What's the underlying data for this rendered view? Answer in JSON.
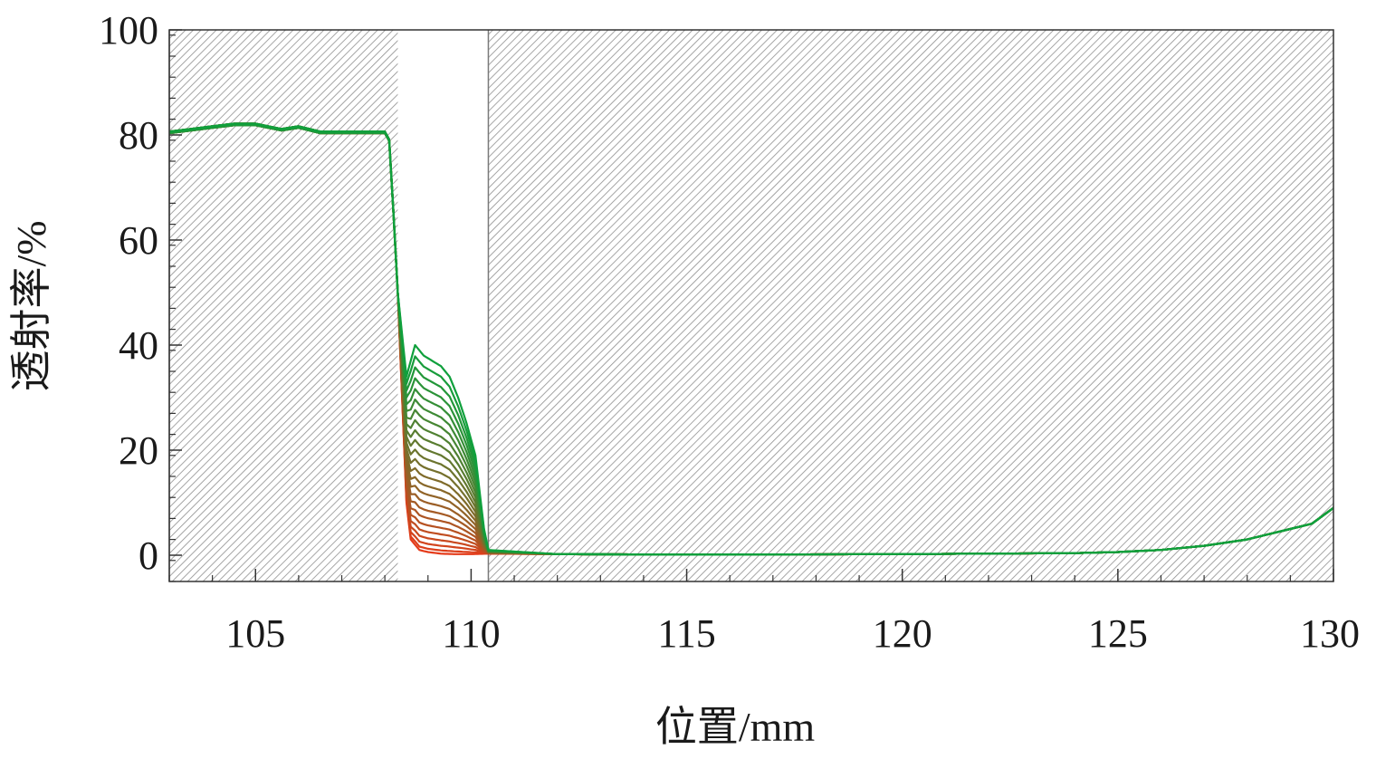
{
  "chart_data": {
    "type": "line",
    "xlabel": "位置/mm",
    "ylabel": "透射率/%",
    "xlim": [
      103,
      130
    ],
    "ylim": [
      -5,
      100
    ],
    "x_ticks": [
      105,
      110,
      115,
      120,
      125,
      130
    ],
    "y_ticks": [
      0,
      20,
      40,
      60,
      80,
      100
    ],
    "x_tick_labels": [
      "105",
      "110",
      "115",
      "120",
      "125",
      "130"
    ],
    "y_tick_labels": [
      "0",
      "20",
      "40",
      "60",
      "80",
      "100"
    ],
    "grid": false,
    "shaded_regions": [
      {
        "x": [
          103,
          108.3
        ],
        "pattern": "hatched"
      },
      {
        "x": [
          110.4,
          130
        ],
        "pattern": "hatched"
      }
    ],
    "colors": {
      "first_series": "#e53b1a",
      "last_series": "#0fa03c",
      "hatch": "#8a8a8a",
      "axis": "#333333"
    },
    "series_count": 24,
    "common_profile": {
      "x": [
        103,
        103.5,
        104,
        104.5,
        105,
        105.3,
        105.6,
        106,
        106.5,
        107,
        107.5,
        108,
        108.1,
        108.2,
        108.3
      ],
      "y": [
        80.5,
        81,
        81.5,
        82,
        82,
        81.5,
        81,
        81.5,
        80.5,
        80.5,
        80.5,
        80.5,
        79,
        65,
        50
      ]
    },
    "window_peak_profile": {
      "x": [
        108.3,
        108.5,
        108.7,
        108.9,
        109.1,
        109.3,
        109.5,
        109.7,
        109.9,
        110.1,
        110.3,
        110.4
      ],
      "y": [
        50,
        34,
        40,
        38,
        37,
        36,
        34,
        30,
        25,
        19,
        5,
        1
      ]
    },
    "window_min_profile": {
      "x": [
        108.3,
        108.4,
        108.5,
        108.6,
        108.8,
        109,
        109.3,
        109.6,
        110,
        110.4
      ],
      "y": [
        50,
        30,
        10,
        3,
        1,
        0.6,
        0.3,
        0.2,
        0.2,
        0.3
      ]
    },
    "tail_profile": {
      "x": [
        110.4,
        112,
        115,
        120,
        124,
        125,
        126,
        127,
        128,
        129,
        129.5,
        130
      ],
      "y": [
        0.3,
        0.2,
        0.1,
        0.2,
        0.4,
        0.6,
        1,
        1.8,
        3,
        5,
        6,
        9
      ]
    }
  }
}
